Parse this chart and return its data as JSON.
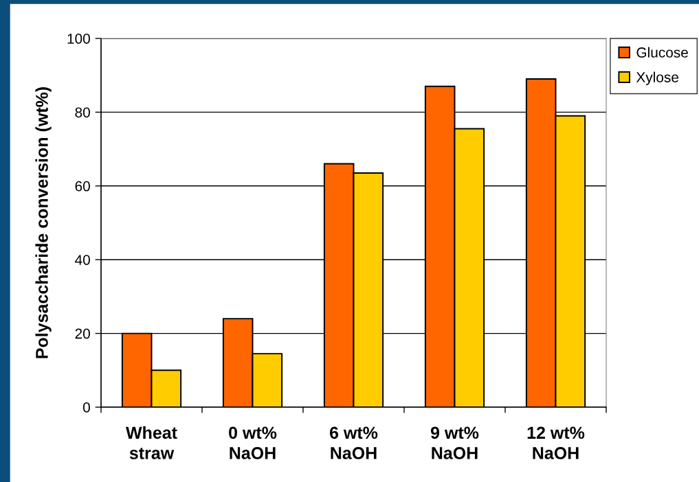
{
  "chart_data": {
    "type": "bar",
    "ylabel": "Polysaccharide conversion (wt%)",
    "categories": [
      "Wheat straw",
      "0 wt% NaOH",
      "6 wt% NaOH",
      "9 wt% NaOH",
      "12 wt% NaOH"
    ],
    "series": [
      {
        "name": "Glucose",
        "color": "#ff6600",
        "values": [
          20,
          24,
          66,
          87,
          89
        ]
      },
      {
        "name": "Xylose",
        "color": "#ffcc00",
        "values": [
          10,
          14.5,
          63.5,
          75.5,
          79
        ]
      }
    ],
    "ylim": [
      0,
      100
    ],
    "yticks": [
      0,
      20,
      40,
      60,
      80,
      100
    ],
    "grid": "y",
    "legend": "top right"
  }
}
